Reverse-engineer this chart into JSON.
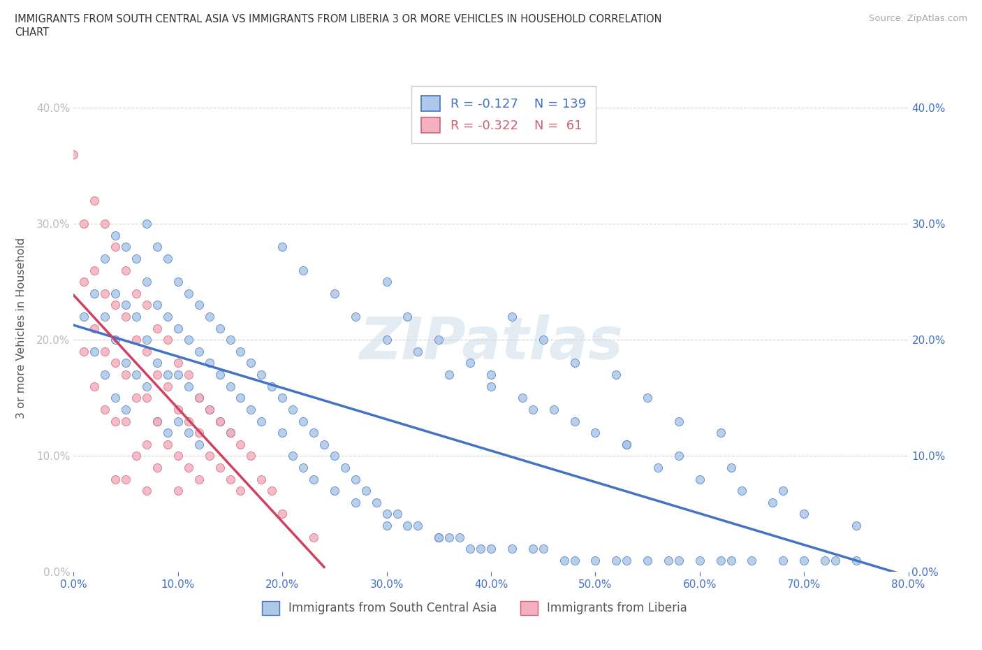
{
  "title_line1": "IMMIGRANTS FROM SOUTH CENTRAL ASIA VS IMMIGRANTS FROM LIBERIA 3 OR MORE VEHICLES IN HOUSEHOLD CORRELATION",
  "title_line2": "CHART",
  "source_text": "Source: ZipAtlas.com",
  "ylabel": "3 or more Vehicles in Household",
  "xlim": [
    0.0,
    0.8
  ],
  "ylim": [
    0.0,
    0.42
  ],
  "x_ticks": [
    0.0,
    0.1,
    0.2,
    0.3,
    0.4,
    0.5,
    0.6,
    0.7,
    0.8
  ],
  "y_ticks": [
    0.0,
    0.1,
    0.2,
    0.3,
    0.4
  ],
  "watermark": "ZIPatlas",
  "blue_R": -0.127,
  "blue_N": 139,
  "pink_R": -0.322,
  "pink_N": 61,
  "blue_face_color": "#adc8e8",
  "blue_edge_color": "#4472C4",
  "pink_face_color": "#f4b0c0",
  "pink_edge_color": "#d06070",
  "blue_line_color": "#4472C4",
  "pink_line_color": "#d04060",
  "legend_blue_label": "Immigrants from South Central Asia",
  "legend_pink_label": "Immigrants from Liberia",
  "blue_scatter_x": [
    0.01,
    0.02,
    0.02,
    0.03,
    0.03,
    0.03,
    0.04,
    0.04,
    0.04,
    0.04,
    0.05,
    0.05,
    0.05,
    0.05,
    0.06,
    0.06,
    0.06,
    0.07,
    0.07,
    0.07,
    0.07,
    0.08,
    0.08,
    0.08,
    0.08,
    0.09,
    0.09,
    0.09,
    0.09,
    0.1,
    0.1,
    0.1,
    0.1,
    0.11,
    0.11,
    0.11,
    0.11,
    0.12,
    0.12,
    0.12,
    0.12,
    0.13,
    0.13,
    0.13,
    0.14,
    0.14,
    0.14,
    0.15,
    0.15,
    0.15,
    0.16,
    0.16,
    0.17,
    0.17,
    0.18,
    0.18,
    0.19,
    0.2,
    0.2,
    0.21,
    0.21,
    0.22,
    0.22,
    0.23,
    0.23,
    0.24,
    0.25,
    0.25,
    0.26,
    0.27,
    0.27,
    0.28,
    0.29,
    0.3,
    0.3,
    0.31,
    0.32,
    0.33,
    0.35,
    0.35,
    0.36,
    0.37,
    0.38,
    0.39,
    0.4,
    0.42,
    0.44,
    0.45,
    0.47,
    0.48,
    0.5,
    0.52,
    0.53,
    0.55,
    0.57,
    0.58,
    0.6,
    0.62,
    0.63,
    0.65,
    0.68,
    0.7,
    0.72,
    0.73,
    0.75,
    0.42,
    0.45,
    0.48,
    0.52,
    0.55,
    0.58,
    0.62,
    0.3,
    0.32,
    0.35,
    0.38,
    0.4,
    0.43,
    0.46,
    0.5,
    0.53,
    0.56,
    0.6,
    0.64,
    0.67,
    0.7,
    0.75,
    0.2,
    0.22,
    0.25,
    0.27,
    0.3,
    0.33,
    0.36,
    0.4,
    0.44,
    0.48,
    0.53,
    0.58,
    0.63,
    0.68
  ],
  "blue_scatter_y": [
    0.22,
    0.24,
    0.19,
    0.27,
    0.22,
    0.17,
    0.29,
    0.24,
    0.2,
    0.15,
    0.28,
    0.23,
    0.18,
    0.14,
    0.27,
    0.22,
    0.17,
    0.3,
    0.25,
    0.2,
    0.16,
    0.28,
    0.23,
    0.18,
    0.13,
    0.27,
    0.22,
    0.17,
    0.12,
    0.25,
    0.21,
    0.17,
    0.13,
    0.24,
    0.2,
    0.16,
    0.12,
    0.23,
    0.19,
    0.15,
    0.11,
    0.22,
    0.18,
    0.14,
    0.21,
    0.17,
    0.13,
    0.2,
    0.16,
    0.12,
    0.19,
    0.15,
    0.18,
    0.14,
    0.17,
    0.13,
    0.16,
    0.15,
    0.12,
    0.14,
    0.1,
    0.13,
    0.09,
    0.12,
    0.08,
    0.11,
    0.1,
    0.07,
    0.09,
    0.08,
    0.06,
    0.07,
    0.06,
    0.05,
    0.04,
    0.05,
    0.04,
    0.04,
    0.03,
    0.03,
    0.03,
    0.03,
    0.02,
    0.02,
    0.02,
    0.02,
    0.02,
    0.02,
    0.01,
    0.01,
    0.01,
    0.01,
    0.01,
    0.01,
    0.01,
    0.01,
    0.01,
    0.01,
    0.01,
    0.01,
    0.01,
    0.01,
    0.01,
    0.01,
    0.01,
    0.22,
    0.2,
    0.18,
    0.17,
    0.15,
    0.13,
    0.12,
    0.25,
    0.22,
    0.2,
    0.18,
    0.17,
    0.15,
    0.14,
    0.12,
    0.11,
    0.09,
    0.08,
    0.07,
    0.06,
    0.05,
    0.04,
    0.28,
    0.26,
    0.24,
    0.22,
    0.2,
    0.19,
    0.17,
    0.16,
    0.14,
    0.13,
    0.11,
    0.1,
    0.09,
    0.07
  ],
  "pink_scatter_x": [
    0.0,
    0.01,
    0.01,
    0.01,
    0.02,
    0.02,
    0.02,
    0.02,
    0.03,
    0.03,
    0.03,
    0.03,
    0.04,
    0.04,
    0.04,
    0.04,
    0.04,
    0.05,
    0.05,
    0.05,
    0.05,
    0.05,
    0.06,
    0.06,
    0.06,
    0.06,
    0.07,
    0.07,
    0.07,
    0.07,
    0.07,
    0.08,
    0.08,
    0.08,
    0.08,
    0.09,
    0.09,
    0.09,
    0.1,
    0.1,
    0.1,
    0.1,
    0.11,
    0.11,
    0.11,
    0.12,
    0.12,
    0.12,
    0.13,
    0.13,
    0.14,
    0.14,
    0.15,
    0.15,
    0.16,
    0.16,
    0.17,
    0.18,
    0.19,
    0.2,
    0.23
  ],
  "pink_scatter_y": [
    0.36,
    0.3,
    0.25,
    0.19,
    0.32,
    0.26,
    0.21,
    0.16,
    0.3,
    0.24,
    0.19,
    0.14,
    0.28,
    0.23,
    0.18,
    0.13,
    0.08,
    0.26,
    0.22,
    0.17,
    0.13,
    0.08,
    0.24,
    0.2,
    0.15,
    0.1,
    0.23,
    0.19,
    0.15,
    0.11,
    0.07,
    0.21,
    0.17,
    0.13,
    0.09,
    0.2,
    0.16,
    0.11,
    0.18,
    0.14,
    0.1,
    0.07,
    0.17,
    0.13,
    0.09,
    0.15,
    0.12,
    0.08,
    0.14,
    0.1,
    0.13,
    0.09,
    0.12,
    0.08,
    0.11,
    0.07,
    0.1,
    0.08,
    0.07,
    0.05,
    0.03
  ]
}
